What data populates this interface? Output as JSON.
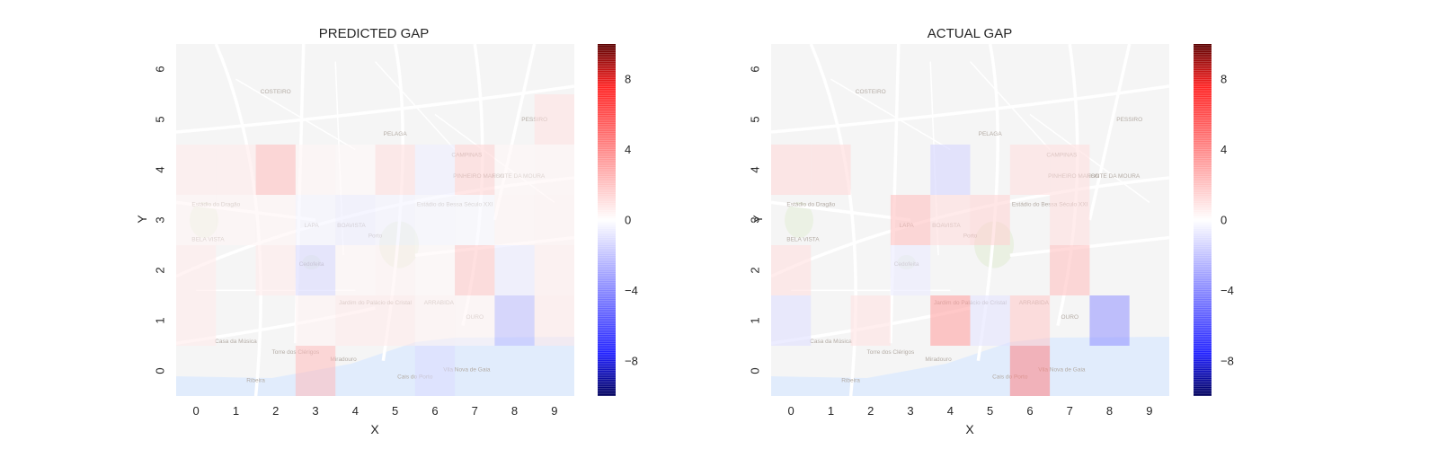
{
  "colors": {
    "negative": "#1f1fff",
    "zero": "#ffffff",
    "positive": "#ff1f1f",
    "map_land": "#f2f2f2",
    "map_water": "#d7e6fb",
    "map_roads": "#ffffff",
    "map_park": "#dfe9d2",
    "map_text": "#9a8f86"
  },
  "map_labels": [
    "COSTEIRO",
    "PESSIRO",
    "PELAGA",
    "CAMPINAS",
    "PINHEIRO MANSO",
    "FONTE DA MOURA",
    "Estádio do Bessa Século XXI",
    "Estádio do Dragão",
    "LAPA",
    "BOAVISTA",
    "Porto",
    "BELA VISTA",
    "Cedofeita",
    "Jardim do Palácio de Cristal",
    "ARRABIDA",
    "OURO",
    "Casa da Música",
    "Torre dos Clérigos",
    "Miradouro",
    "Vila Nova de Gaia",
    "Cais do Porto",
    "Ribeira"
  ],
  "chart_data": [
    {
      "type": "heatmap",
      "title": "PREDICTED GAP",
      "xlabel": "X",
      "ylabel": "Y",
      "x": [
        0,
        1,
        2,
        3,
        4,
        5,
        6,
        7,
        8,
        9
      ],
      "y": [
        0,
        1,
        2,
        3,
        4,
        5,
        6
      ],
      "vmin": -10,
      "vmax": 10,
      "colorbar_ticks": [
        -8,
        -4,
        0,
        4,
        8
      ],
      "values": [
        [
          0,
          0,
          0,
          3,
          0,
          0,
          -1.5,
          0,
          0,
          0
        ],
        [
          1,
          0,
          0,
          0.6,
          1,
          1,
          0.6,
          0.5,
          -3,
          1
        ],
        [
          1,
          0,
          1,
          -1.8,
          0.4,
          0.6,
          0.3,
          2.5,
          -1,
          0.8
        ],
        [
          0.5,
          0.5,
          0.5,
          -0.5,
          -0.8,
          -0.6,
          -0.4,
          -0.3,
          0.5,
          0.6
        ],
        [
          1,
          1,
          3,
          0.5,
          0.3,
          1.5,
          -0.8,
          2,
          0.4,
          0.5
        ],
        [
          0,
          0,
          0,
          0,
          0,
          0,
          0,
          0,
          0,
          1.4
        ],
        [
          0,
          0,
          0,
          0,
          0,
          0,
          0,
          0,
          0,
          0
        ]
      ]
    },
    {
      "type": "heatmap",
      "title": "ACTUAL GAP",
      "xlabel": "X",
      "ylabel": "Y",
      "x": [
        0,
        1,
        2,
        3,
        4,
        5,
        6,
        7,
        8,
        9
      ],
      "y": [
        0,
        1,
        2,
        3,
        4,
        5,
        6
      ],
      "vmin": -10,
      "vmax": 10,
      "colorbar_ticks": [
        -8,
        -4,
        0,
        4,
        8
      ],
      "values": [
        [
          0,
          0,
          0,
          0,
          0,
          0,
          5.5,
          0,
          0,
          0
        ],
        [
          -1.5,
          0,
          1.4,
          0,
          4.5,
          -1.3,
          2.5,
          0,
          -5,
          0
        ],
        [
          1.5,
          0,
          0,
          -1,
          0,
          0,
          0,
          3,
          0,
          0
        ],
        [
          0,
          0,
          0,
          3,
          1.6,
          2,
          0,
          1.5,
          0,
          0
        ],
        [
          1.8,
          1.8,
          0,
          0,
          -2,
          0,
          1.5,
          1.5,
          0,
          0
        ],
        [
          0,
          0,
          0,
          0,
          0,
          0,
          0,
          0,
          0,
          0
        ],
        [
          0,
          0,
          0,
          0,
          0,
          0,
          0,
          0,
          0,
          0
        ]
      ]
    }
  ]
}
